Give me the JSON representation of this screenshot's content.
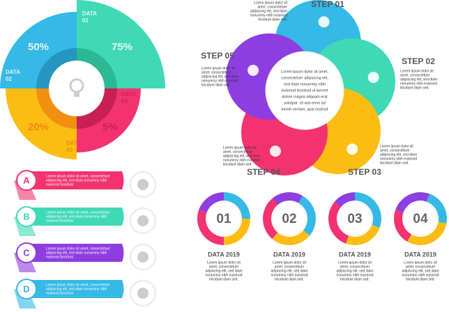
{
  "quadrant": {
    "segments": [
      {
        "label": [
          "DATA",
          "01"
        ],
        "value": "75%"
      },
      {
        "label": [
          "DATA",
          "02"
        ],
        "value": "50%"
      },
      {
        "label": [
          "DATA",
          "03"
        ],
        "value": "20%"
      },
      {
        "label": [
          "DATA",
          "04"
        ],
        "value": "5%"
      }
    ]
  },
  "steps": [
    {
      "title": "STEP 01",
      "text": [
        "Lorem ipsum dolor sit",
        "amet, consectetuer",
        "adipiscing elit, sed diam",
        "nonummy nibh euismod",
        "tincidunt diam sed."
      ]
    },
    {
      "title": "STEP 02",
      "text": [
        "Lorem ipsum dolor sit",
        "amet, consectetuer",
        "adipiscing elit, sed diam",
        "nonummy nibh euismod",
        "tincidunt diam sed."
      ]
    },
    {
      "title": "STEP 03",
      "text": [
        "Lorem ipsum dolor sit",
        "amet, consectetuer",
        "adipiscing elit, sed diam",
        "nonummy nibh euismod",
        "tincidunt diam sed."
      ]
    },
    {
      "title": "STEP 04",
      "text": [
        "Lorem ipsum dolor sit",
        "amet, consectetuer",
        "adipiscing elit, sed diam",
        "nonummy nibh euismod",
        "tincidunt diam sed."
      ]
    },
    {
      "title": "STEP 05",
      "text": [
        "Lorem ipsum dolor sit",
        "amet, consectetuer",
        "adipiscing elit, sed diam",
        "nonummy nibh euismod",
        "tincidunt diam sed."
      ]
    }
  ],
  "center_text": [
    "Lorem ipsum dolor sit amet,",
    "consectetuer adipiscing elit,",
    "sed diam nonummy nibh",
    "euismod tincidunt ut laoreet",
    "dolore magna aliquam erat",
    "volutpat. Ut wisi enim ad",
    "minim veniam, quis nostrud"
  ],
  "list": [
    {
      "letter": "A",
      "text": [
        "Lorem ipsum dolor sit amet, consectetuer",
        "adipiscing elit, sed diam nonummy nibh",
        "euismod tincidunt"
      ]
    },
    {
      "letter": "B",
      "text": [
        "Lorem ipsum dolor sit amet, consectetuer",
        "adipiscing elit, sed diam nonummy nibh",
        "euismod tincidunt"
      ]
    },
    {
      "letter": "C",
      "text": [
        "Lorem ipsum dolor sit amet, consectetuer",
        "adipiscing elit, sed diam nonummy nibh",
        "euismod tincidunt"
      ]
    },
    {
      "letter": "D",
      "text": [
        "Lorem ipsum dolor sit amet, consectetuer",
        "adipiscing elit, sed diam nonummy nibh",
        "euismod tincidunt"
      ]
    }
  ],
  "donuts": [
    {
      "number": "01",
      "title": "DATA 2019",
      "text": [
        "Lorem ipsum dolor sit",
        "amet, consectetuer",
        "adipiscing elit, sed diam",
        "nonummy nibh euismod",
        "tincidunt diam sed."
      ]
    },
    {
      "number": "02",
      "title": "DATA 2019",
      "text": [
        "Lorem ipsum dolor sit",
        "amet, consectetuer",
        "adipiscing elit, sed diam",
        "nonummy nibh euismod",
        "tincidunt diam sed."
      ]
    },
    {
      "number": "03",
      "title": "DATA 2019",
      "text": [
        "Lorem ipsum dolor sit",
        "amet, consectetuer",
        "adipiscing elit, sed diam",
        "nonummy nibh euismod",
        "tincidunt diam sed."
      ]
    },
    {
      "number": "04",
      "title": "DATA 2019",
      "text": [
        "Lorem ipsum dolor sit",
        "amet, consectetuer",
        "adipiscing elit, sed diam",
        "nonummy nibh euismod",
        "tincidunt diam sed."
      ]
    }
  ]
}
